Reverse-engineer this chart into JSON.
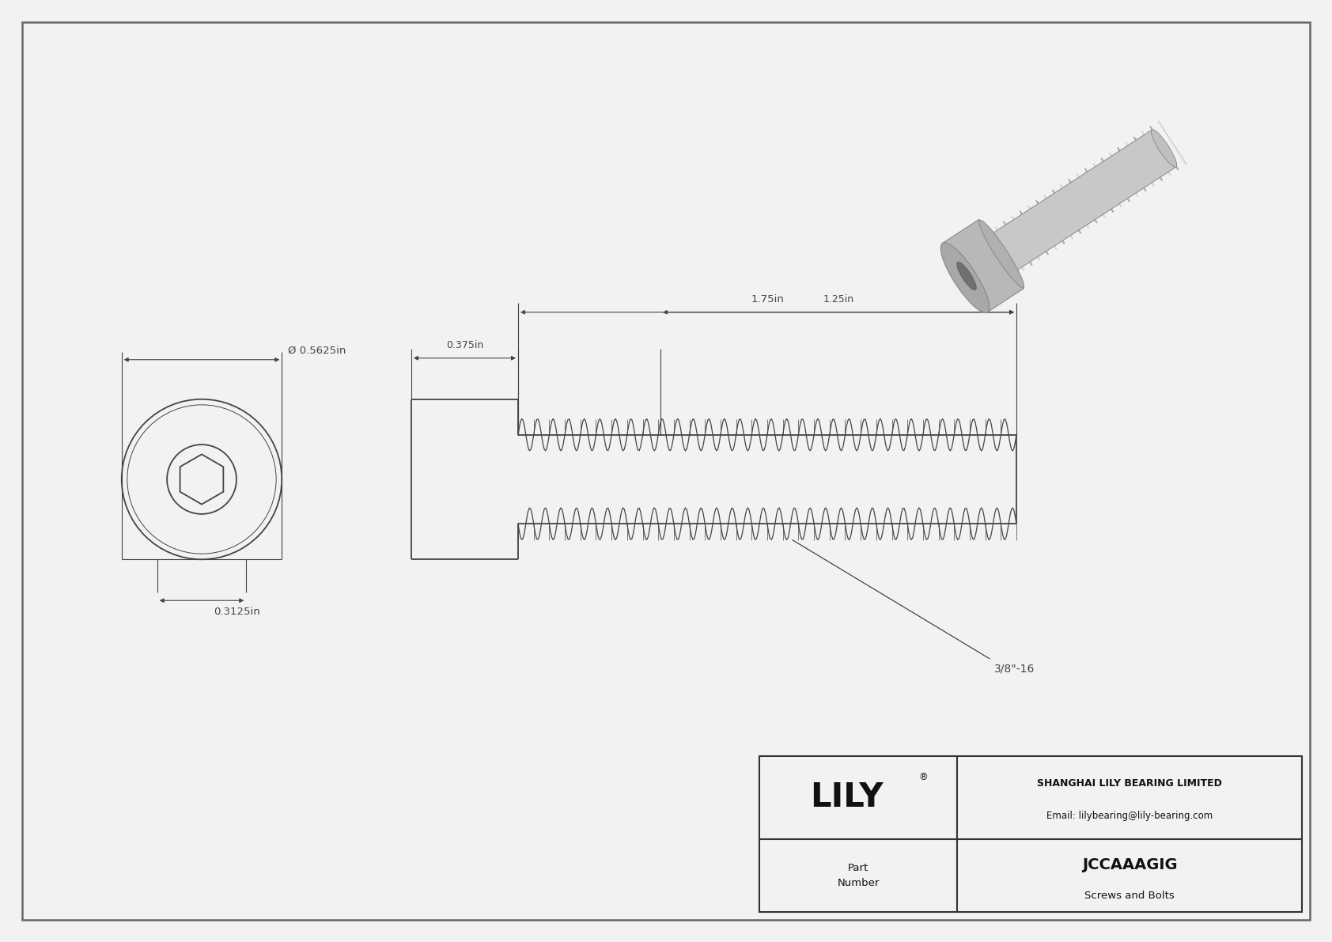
{
  "bg_color": "#f2f2f2",
  "line_color": "#444444",
  "title": "JCCAAAGIG",
  "subtitle": "Screws and Bolts",
  "company": "SHANGHAI LILY BEARING LIMITED",
  "email": "Email: lilybearing@lily-bearing.com",
  "part_label": "Part\nNumber",
  "diameter_label": "Ø 0.5625in",
  "width_label": "0.3125in",
  "head_len_label": "0.375in",
  "thread_len_label": "1.75in",
  "thread_inner_label": "1.25in",
  "thread_spec": "3/8\"-16"
}
